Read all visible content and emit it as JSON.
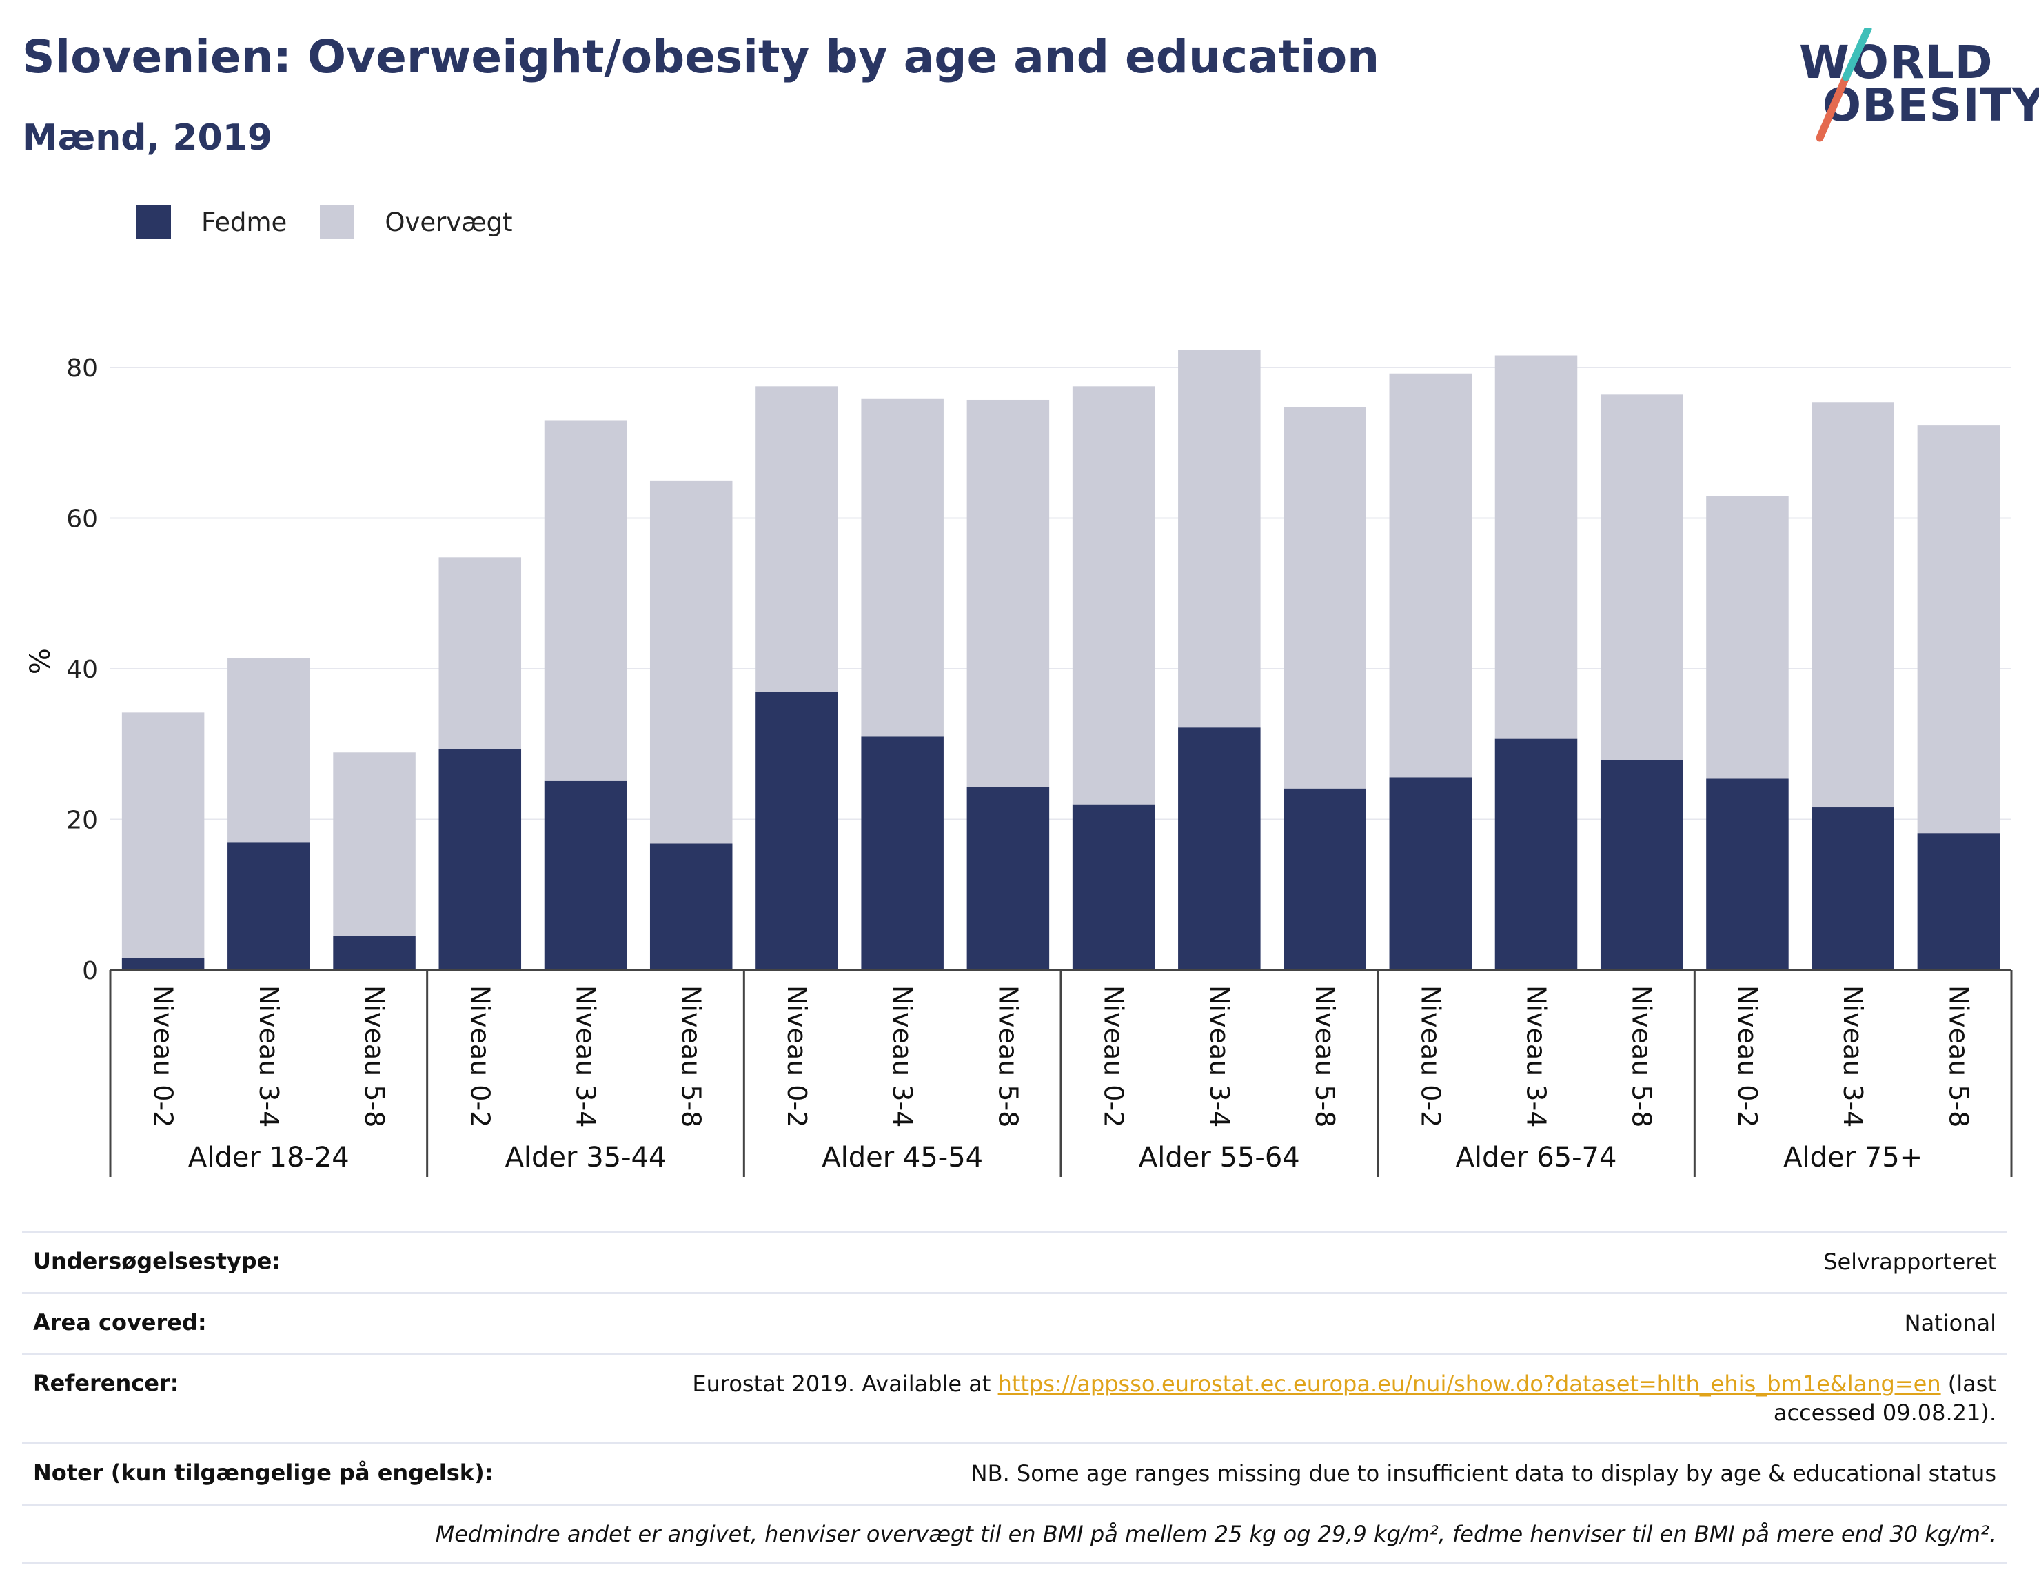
{
  "header": {
    "title": "Slovenien: Overweight/obesity by age and education",
    "subtitle": "Mænd, 2019"
  },
  "logo": {
    "line1": "WORLD",
    "line2": "OBESITY"
  },
  "legend": {
    "items": [
      {
        "label": "Fedme",
        "color": "#2a3663"
      },
      {
        "label": "Overvægt",
        "color": "#cbccd8"
      }
    ]
  },
  "chart_data": {
    "type": "bar",
    "stacked": true,
    "ylabel": "%",
    "ylim": [
      0,
      90
    ],
    "yticks": [
      0,
      20,
      40,
      60,
      80
    ],
    "grid": true,
    "legend_position": "top-left",
    "groups": [
      "Alder 18-24",
      "Alder 35-44",
      "Alder 45-54",
      "Alder 55-64",
      "Alder 65-74",
      "Alder 75+"
    ],
    "subcategories": [
      "Niveau 0-2",
      "Niveau 3-4",
      "Niveau 5-8"
    ],
    "series": [
      {
        "name": "Fedme",
        "color": "#2a3663",
        "values": [
          1.6,
          17.0,
          4.5,
          29.3,
          25.1,
          16.8,
          36.9,
          31.0,
          24.3,
          22.0,
          32.2,
          24.1,
          25.6,
          30.7,
          27.9,
          25.4,
          21.6,
          18.2
        ]
      },
      {
        "name": "Overvægt",
        "color": "#cbccd8",
        "values": [
          32.6,
          24.4,
          24.4,
          25.5,
          47.9,
          48.2,
          40.6,
          44.9,
          51.4,
          55.5,
          50.1,
          50.6,
          53.6,
          50.9,
          48.5,
          37.5,
          53.8,
          54.1
        ]
      }
    ]
  },
  "info": {
    "rows": [
      {
        "label": "Undersøgelsestype:",
        "value": "Selvrapporteret"
      },
      {
        "label": "Area covered:",
        "value": "National"
      },
      {
        "label": "Referencer:",
        "value_prefix": "Eurostat 2019. Available at ",
        "link": "https://appsso.eurostat.ec.europa.eu/nui/show.do?dataset=hlth_ehis_bm1e&lang=en",
        "value_suffix": " (last accessed 09.08.21)."
      },
      {
        "label": "Noter (kun tilgængelige på engelsk):",
        "value": "NB. Some age ranges missing due to insufficient data to display by age & educational status"
      }
    ],
    "footnote": "Medmindre andet er angivet, henviser overvægt til en BMI på mellem 25 kg og 29,9 kg/m², fedme henviser til en BMI på mere end 30 kg/m²."
  }
}
